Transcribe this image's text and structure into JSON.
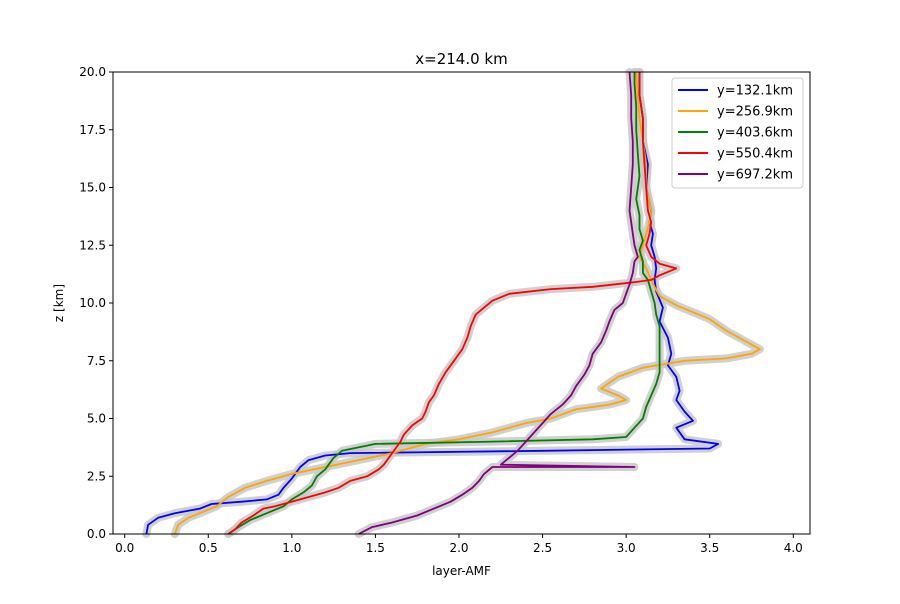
{
  "chart_data": {
    "type": "line",
    "title": "x=214.0 km",
    "xlabel": "layer-AMF",
    "ylabel": "z [km]",
    "xlim": [
      -0.07,
      4.1
    ],
    "ylim": [
      0,
      20
    ],
    "xticks": [
      "0.0",
      "0.5",
      "1.0",
      "1.5",
      "2.0",
      "2.5",
      "3.0",
      "3.5",
      "4.0"
    ],
    "xtick_values": [
      0,
      0.5,
      1,
      1.5,
      2,
      2.5,
      3,
      3.5,
      4
    ],
    "yticks": [
      "0.0",
      "2.5",
      "5.0",
      "7.5",
      "10.0",
      "12.5",
      "15.0",
      "17.5",
      "20.0"
    ],
    "ytick_values": [
      0,
      2.5,
      5,
      7.5,
      10,
      12.5,
      15,
      17.5,
      20
    ],
    "grid": false,
    "legend_position": "top-right",
    "uncertainty_band_color": "#c8c8c8",
    "series": [
      {
        "name": "y=132.1km",
        "color": "#0000ff",
        "points": [
          [
            0.13,
            0
          ],
          [
            0.14,
            0.4
          ],
          [
            0.2,
            0.7
          ],
          [
            0.3,
            0.9
          ],
          [
            0.45,
            1.1
          ],
          [
            0.52,
            1.3
          ],
          [
            0.7,
            1.4
          ],
          [
            0.85,
            1.5
          ],
          [
            0.92,
            1.7
          ],
          [
            0.95,
            2.0
          ],
          [
            1.0,
            2.4
          ],
          [
            1.05,
            2.9
          ],
          [
            1.1,
            3.2
          ],
          [
            1.2,
            3.4
          ],
          [
            1.35,
            3.5
          ],
          [
            2.5,
            3.6
          ],
          [
            3.5,
            3.7
          ],
          [
            3.55,
            3.9
          ],
          [
            3.35,
            4.1
          ],
          [
            3.3,
            4.6
          ],
          [
            3.4,
            4.9
          ],
          [
            3.35,
            5.3
          ],
          [
            3.3,
            5.8
          ],
          [
            3.32,
            6.2
          ],
          [
            3.3,
            6.8
          ],
          [
            3.25,
            7.3
          ],
          [
            3.27,
            7.8
          ],
          [
            3.25,
            8.5
          ],
          [
            3.2,
            9.2
          ],
          [
            3.22,
            9.8
          ],
          [
            3.18,
            10.5
          ],
          [
            3.17,
            11.0
          ],
          [
            3.18,
            11.5
          ],
          [
            3.17,
            12.0
          ],
          [
            3.15,
            12.5
          ],
          [
            3.16,
            13.0
          ],
          [
            3.14,
            13.5
          ],
          [
            3.15,
            14.0
          ],
          [
            3.12,
            15.0
          ],
          [
            3.13,
            16.0
          ],
          [
            3.1,
            17.0
          ],
          [
            3.1,
            18.0
          ],
          [
            3.08,
            19.0
          ],
          [
            3.08,
            20.0
          ]
        ]
      },
      {
        "name": "y=256.9km",
        "color": "#ffa500",
        "points": [
          [
            0.3,
            0
          ],
          [
            0.32,
            0.4
          ],
          [
            0.38,
            0.7
          ],
          [
            0.45,
            0.9
          ],
          [
            0.55,
            1.2
          ],
          [
            0.62,
            1.6
          ],
          [
            0.72,
            2.0
          ],
          [
            0.85,
            2.3
          ],
          [
            1.0,
            2.6
          ],
          [
            1.2,
            2.9
          ],
          [
            1.4,
            3.2
          ],
          [
            1.6,
            3.5
          ],
          [
            1.8,
            3.9
          ],
          [
            2.0,
            4.1
          ],
          [
            2.2,
            4.4
          ],
          [
            2.4,
            4.8
          ],
          [
            2.55,
            5.0
          ],
          [
            2.7,
            5.4
          ],
          [
            2.9,
            5.6
          ],
          [
            3.0,
            5.8
          ],
          [
            2.95,
            6.0
          ],
          [
            2.85,
            6.3
          ],
          [
            2.95,
            6.8
          ],
          [
            3.1,
            7.2
          ],
          [
            3.35,
            7.5
          ],
          [
            3.6,
            7.6
          ],
          [
            3.75,
            7.8
          ],
          [
            3.8,
            8.0
          ],
          [
            3.75,
            8.2
          ],
          [
            3.6,
            8.8
          ],
          [
            3.5,
            9.3
          ],
          [
            3.4,
            9.6
          ],
          [
            3.3,
            9.9
          ],
          [
            3.2,
            10.3
          ],
          [
            3.17,
            10.7
          ],
          [
            3.15,
            11.0
          ],
          [
            3.12,
            11.5
          ],
          [
            3.08,
            12.0
          ],
          [
            3.1,
            12.5
          ],
          [
            3.12,
            13.0
          ],
          [
            3.14,
            13.5
          ],
          [
            3.15,
            14.0
          ],
          [
            3.12,
            15.0
          ],
          [
            3.12,
            16.0
          ],
          [
            3.1,
            17.0
          ],
          [
            3.08,
            18.0
          ],
          [
            3.07,
            19.0
          ],
          [
            3.06,
            20.0
          ]
        ]
      },
      {
        "name": "y=403.6km",
        "color": "#008000",
        "points": [
          [
            0.62,
            0
          ],
          [
            0.68,
            0.3
          ],
          [
            0.75,
            0.6
          ],
          [
            0.85,
            0.9
          ],
          [
            0.95,
            1.2
          ],
          [
            1.0,
            1.5
          ],
          [
            1.07,
            1.8
          ],
          [
            1.12,
            2.1
          ],
          [
            1.15,
            2.5
          ],
          [
            1.2,
            2.8
          ],
          [
            1.22,
            3.0
          ],
          [
            1.25,
            3.3
          ],
          [
            1.3,
            3.6
          ],
          [
            1.5,
            3.9
          ],
          [
            2.2,
            4.0
          ],
          [
            2.8,
            4.1
          ],
          [
            3.0,
            4.2
          ],
          [
            3.05,
            4.6
          ],
          [
            3.1,
            5.0
          ],
          [
            3.12,
            5.5
          ],
          [
            3.15,
            6.0
          ],
          [
            3.18,
            6.5
          ],
          [
            3.2,
            7.0
          ],
          [
            3.2,
            7.6
          ],
          [
            3.2,
            8.0
          ],
          [
            3.2,
            8.6
          ],
          [
            3.2,
            9.0
          ],
          [
            3.18,
            9.5
          ],
          [
            3.17,
            10.0
          ],
          [
            3.15,
            10.5
          ],
          [
            3.13,
            11.0
          ],
          [
            3.1,
            11.3
          ],
          [
            3.1,
            11.8
          ],
          [
            3.08,
            12.3
          ],
          [
            3.1,
            12.7
          ],
          [
            3.08,
            13.2
          ],
          [
            3.08,
            13.8
          ],
          [
            3.06,
            14.5
          ],
          [
            3.08,
            15.5
          ],
          [
            3.07,
            16.5
          ],
          [
            3.06,
            17.5
          ],
          [
            3.06,
            18.5
          ],
          [
            3.05,
            19.5
          ],
          [
            3.05,
            20.0
          ]
        ]
      },
      {
        "name": "y=550.4km",
        "color": "#ff0000",
        "points": [
          [
            0.62,
            0
          ],
          [
            0.66,
            0.2
          ],
          [
            0.7,
            0.5
          ],
          [
            0.77,
            0.8
          ],
          [
            0.83,
            1.1
          ],
          [
            0.9,
            1.2
          ],
          [
            1.05,
            1.5
          ],
          [
            1.2,
            1.8
          ],
          [
            1.28,
            2.0
          ],
          [
            1.35,
            2.3
          ],
          [
            1.45,
            2.5
          ],
          [
            1.52,
            2.8
          ],
          [
            1.55,
            3.0
          ],
          [
            1.58,
            3.3
          ],
          [
            1.62,
            3.7
          ],
          [
            1.65,
            4.0
          ],
          [
            1.67,
            4.3
          ],
          [
            1.72,
            4.7
          ],
          [
            1.78,
            5.0
          ],
          [
            1.8,
            5.3
          ],
          [
            1.82,
            5.7
          ],
          [
            1.85,
            6.0
          ],
          [
            1.88,
            6.5
          ],
          [
            1.92,
            7.0
          ],
          [
            1.97,
            7.5
          ],
          [
            2.02,
            8.0
          ],
          [
            2.05,
            8.5
          ],
          [
            2.07,
            9.0
          ],
          [
            2.1,
            9.5
          ],
          [
            2.15,
            9.8
          ],
          [
            2.2,
            10.1
          ],
          [
            2.3,
            10.4
          ],
          [
            2.55,
            10.6
          ],
          [
            2.8,
            10.7
          ],
          [
            3.05,
            10.9
          ],
          [
            3.15,
            11.0
          ],
          [
            3.2,
            11.2
          ],
          [
            3.3,
            11.5
          ],
          [
            3.2,
            11.7
          ],
          [
            3.15,
            12.0
          ],
          [
            3.12,
            12.5
          ],
          [
            3.14,
            13.0
          ],
          [
            3.15,
            13.5
          ],
          [
            3.13,
            14.0
          ],
          [
            3.12,
            15.0
          ],
          [
            3.11,
            16.0
          ],
          [
            3.1,
            17.0
          ],
          [
            3.1,
            18.0
          ],
          [
            3.08,
            19.0
          ],
          [
            3.08,
            20.0
          ]
        ]
      },
      {
        "name": "y=697.2km",
        "color": "#800080",
        "points": [
          [
            1.4,
            0
          ],
          [
            1.48,
            0.3
          ],
          [
            1.6,
            0.5
          ],
          [
            1.75,
            0.8
          ],
          [
            1.85,
            1.1
          ],
          [
            1.95,
            1.4
          ],
          [
            2.02,
            1.7
          ],
          [
            2.08,
            2.0
          ],
          [
            2.12,
            2.3
          ],
          [
            2.15,
            2.6
          ],
          [
            2.2,
            2.9
          ],
          [
            3.05,
            2.9
          ],
          [
            2.25,
            3.0
          ],
          [
            2.3,
            3.3
          ],
          [
            2.35,
            3.6
          ],
          [
            2.4,
            4.0
          ],
          [
            2.45,
            4.4
          ],
          [
            2.5,
            4.8
          ],
          [
            2.55,
            5.2
          ],
          [
            2.62,
            5.6
          ],
          [
            2.67,
            6.0
          ],
          [
            2.7,
            6.4
          ],
          [
            2.75,
            6.9
          ],
          [
            2.78,
            7.3
          ],
          [
            2.8,
            7.8
          ],
          [
            2.85,
            8.3
          ],
          [
            2.88,
            8.8
          ],
          [
            2.9,
            9.2
          ],
          [
            2.93,
            9.7
          ],
          [
            2.98,
            10.0
          ],
          [
            3.0,
            10.4
          ],
          [
            3.02,
            10.8
          ],
          [
            3.04,
            11.3
          ],
          [
            3.05,
            11.8
          ],
          [
            3.07,
            12.0
          ],
          [
            3.05,
            12.5
          ],
          [
            3.04,
            13.0
          ],
          [
            3.03,
            13.5
          ],
          [
            3.02,
            14.0
          ],
          [
            3.03,
            15.0
          ],
          [
            3.04,
            16.0
          ],
          [
            3.04,
            17.0
          ],
          [
            3.03,
            18.0
          ],
          [
            3.03,
            19.0
          ],
          [
            3.02,
            20.0
          ]
        ]
      }
    ]
  }
}
